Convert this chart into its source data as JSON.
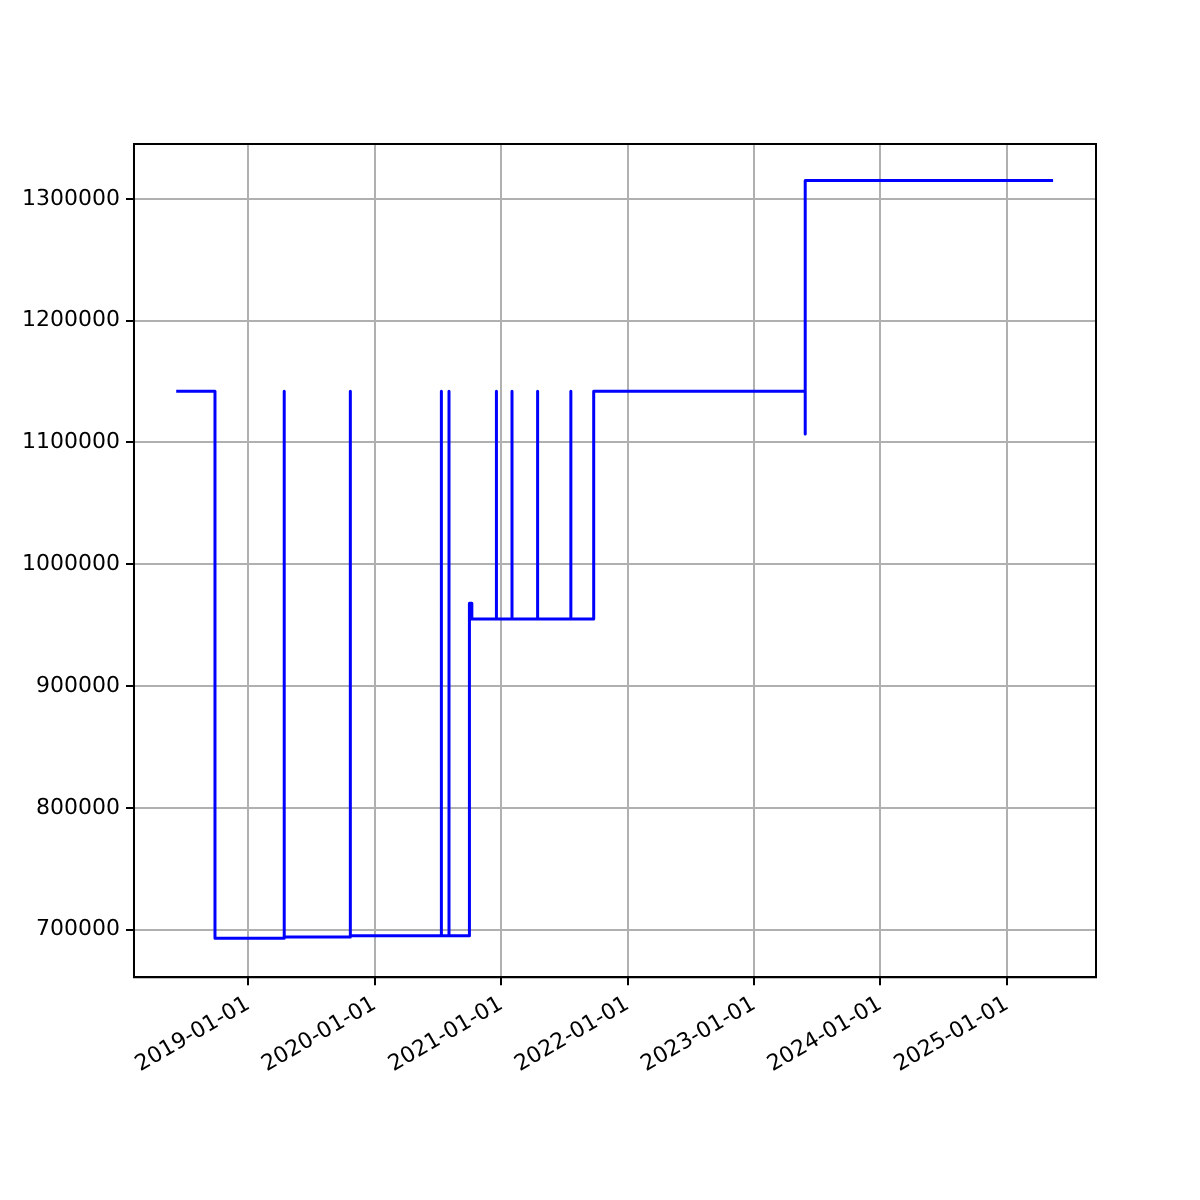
{
  "chart_data": {
    "type": "line",
    "x": [
      "2018-06-07",
      "2018-09-27",
      "2018-09-27",
      "2019-04-15",
      "2019-04-15",
      "2019-04-15",
      "2019-10-23",
      "2019-10-23",
      "2019-10-23",
      "2020-07-12",
      "2020-07-12",
      "2020-07-12",
      "2020-08-03",
      "2020-08-03",
      "2020-08-03",
      "2020-10-01",
      "2020-10-01",
      "2020-10-08",
      "2020-10-08",
      "2020-12-18",
      "2020-12-18",
      "2020-12-18",
      "2021-02-01",
      "2021-02-01",
      "2021-02-01",
      "2021-04-16",
      "2021-04-16",
      "2021-04-16",
      "2021-07-21",
      "2021-07-21",
      "2021-07-21",
      "2021-09-25",
      "2021-09-25",
      "2023-05-29",
      "2023-05-29",
      "2023-05-29",
      "2025-05-14"
    ],
    "series": [
      {
        "color": "#0000ff",
        "values": [
          1142000,
          1142000,
          693000,
          693000,
          1142000,
          694000,
          694000,
          1142000,
          695000,
          695000,
          1142000,
          695000,
          695000,
          1142000,
          695000,
          695000,
          968000,
          968000,
          955000,
          955000,
          1142000,
          955000,
          955000,
          1142000,
          955000,
          955000,
          1142000,
          955000,
          955000,
          1142000,
          955000,
          955000,
          1142000,
          1142000,
          1107000,
          1315000,
          1315000
        ]
      }
    ],
    "xlim": [
      "2018-02-05",
      "2025-09-15"
    ],
    "xticks": [
      "2019-01-01",
      "2020-01-01",
      "2021-01-01",
      "2022-01-01",
      "2023-01-01",
      "2024-01-01",
      "2025-01-01"
    ],
    "ylim": [
      661000,
      1345000
    ],
    "yticks": [
      700000,
      800000,
      900000,
      1000000,
      1100000,
      1200000,
      1300000
    ],
    "grid": true,
    "legend": false,
    "marker": "none",
    "line_style": "solid"
  }
}
